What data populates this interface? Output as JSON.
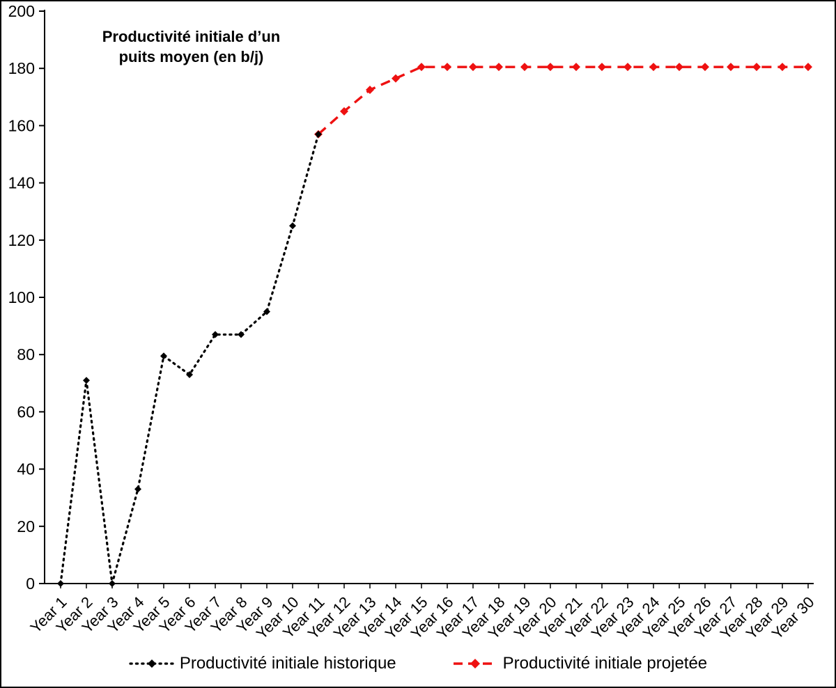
{
  "chart_data": {
    "type": "line",
    "title": "Productivité initiale d’un puits moyen (en b/j)",
    "title_lines": [
      "Productivité initiale d’un",
      "puits moyen (en b/j)"
    ],
    "x_labels": [
      "Year 1",
      "Year 2",
      "Year 3",
      "Year 4",
      "Year 5",
      "Year 6",
      "Year 7",
      "Year 8",
      "Year 9",
      "Year 10",
      "Year 11",
      "Year 12",
      "Year 13",
      "Year 14",
      "Year 15",
      "Year 16",
      "Year 17",
      "Year 18",
      "Year 19",
      "Year 20",
      "Year 21",
      "Year 22",
      "Year 23",
      "Year 24",
      "Year 25",
      "Year 26",
      "Year 27",
      "Year 28",
      "Year 29",
      "Year 30"
    ],
    "ylim": [
      0,
      200
    ],
    "ytick_step": 20,
    "y_tick_labels": [
      "0",
      "20",
      "40",
      "60",
      "80",
      "100",
      "120",
      "140",
      "160",
      "180",
      "200"
    ],
    "grid": false,
    "legend_position": "bottom",
    "series": [
      {
        "name": "Productivité initiale historique",
        "color": "#000000",
        "line_style": "dotted",
        "marker": "diamond",
        "start_category": "Year 1",
        "values": [
          0,
          71,
          0,
          33,
          79.5,
          73,
          87,
          87,
          95,
          125,
          157
        ]
      },
      {
        "name": "Productivité initiale projetée",
        "color": "#ee1111",
        "line_style": "dashed",
        "marker": "diamond",
        "start_category": "Year 11",
        "values": [
          157,
          165,
          172.5,
          176.5,
          180.5,
          180.5,
          180.5,
          180.5,
          180.5,
          180.5,
          180.5,
          180.5,
          180.5,
          180.5,
          180.5,
          180.5,
          180.5,
          180.5,
          180.5,
          180.5
        ]
      }
    ]
  }
}
